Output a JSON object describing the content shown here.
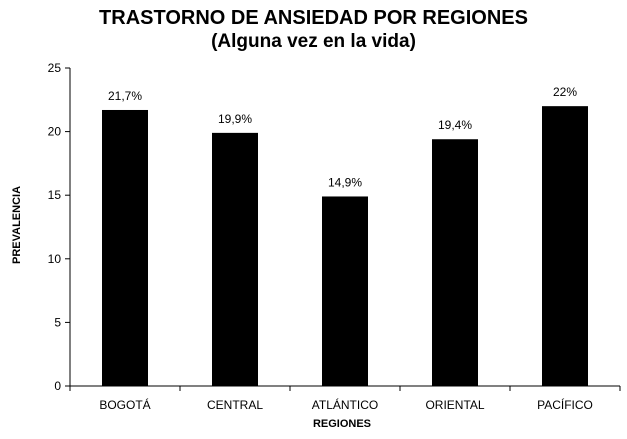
{
  "chart_data": {
    "type": "bar",
    "title": "TRASTORNO DE ANSIEDAD POR REGIONES",
    "subtitle": "(Alguna vez en la vida)",
    "xlabel": "REGIONES",
    "ylabel": "PREVALENCIA",
    "categories": [
      "BOGOTÁ",
      "CENTRAL",
      "ATLÁNTICO",
      "ORIENTAL",
      "PACÍFICO"
    ],
    "values": [
      21.7,
      19.9,
      14.9,
      19.4,
      22
    ],
    "data_labels": [
      "21,7%",
      "19,9%",
      "14,9%",
      "19,4%",
      "22%"
    ],
    "yticks": [
      "0",
      "5",
      "10",
      "15",
      "20",
      "25"
    ],
    "ylim": [
      0,
      25
    ],
    "grid": false,
    "legend": "none",
    "bar_color": "#000000"
  }
}
